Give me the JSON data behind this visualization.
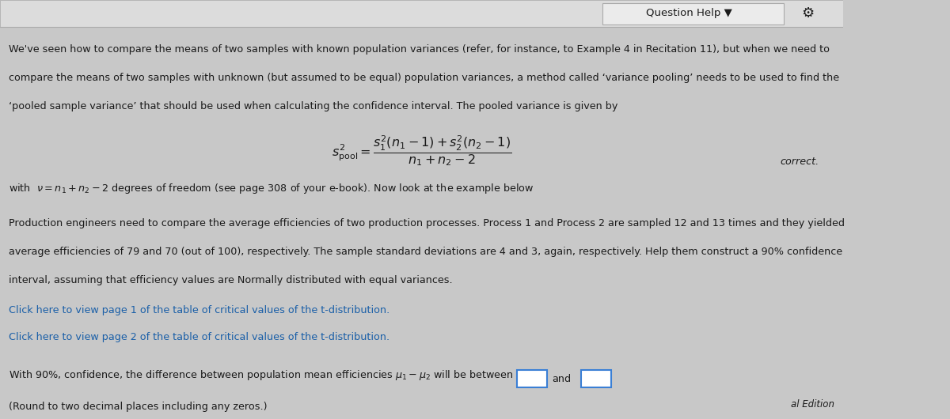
{
  "bg_color": "#c8c8c8",
  "panel_color": "#c8c8c8",
  "header_bg": "#dcdcdc",
  "text_color": "#1a1a1a",
  "link_color": "#1a5fa8",
  "title_bar_text": "Question Help ▼",
  "gear_symbol": "⚙",
  "right_label": "correct.",
  "bottom_right": "al Edition",
  "para1_l1": "We've seen how to compare the means of two samples with known population variances (refer, for instance, to Example 4 in Recitation 11), but when we need to",
  "para1_l2": "compare the means of two samples with unknown (but assumed to be equal) population variances, a method called ‘variance pooling’ needs to be used to find the",
  "para1_l3": "‘pooled sample variance’ that should be used when calculating the confidence interval. The pooled variance is given by",
  "formula": "$s^2_{\\mathrm{pool}} = \\dfrac{s^2_1(n_1-1)+s^2_2(n_2-1)}{n_1+n_2-2}$",
  "para2": "with  $\\nu=n_1+n_2-2$ degrees of freedom (see page 308 of your e-book). Now look at the example below",
  "para3_l1": "Production engineers need to compare the average efficiencies of two production processes. Process 1 and Process 2 are sampled 12 and 13 times and they yielded",
  "para3_l2": "average efficiencies of 79 and 70 (out of 100), respectively. The sample standard deviations are 4 and 3, again, respectively. Help them construct a 90% confidence",
  "para3_l3": "interval, assuming that efficiency values are Normally distributed with equal variances.",
  "link1": "Click here to view page 1 of the table of critical values of the t-distribution.",
  "link2": "Click here to view page 2 of the table of critical values of the t-distribution.",
  "answer_line": "With 90%, confidence, the difference between population mean efficiencies $\\mu_1-\\mu_2$ will be between",
  "answer_and": "and",
  "answer_note": "(Round to two decimal places including any zeros.)",
  "fs_body": 9.2,
  "fs_formula": 11.5,
  "fs_header": 9.5
}
